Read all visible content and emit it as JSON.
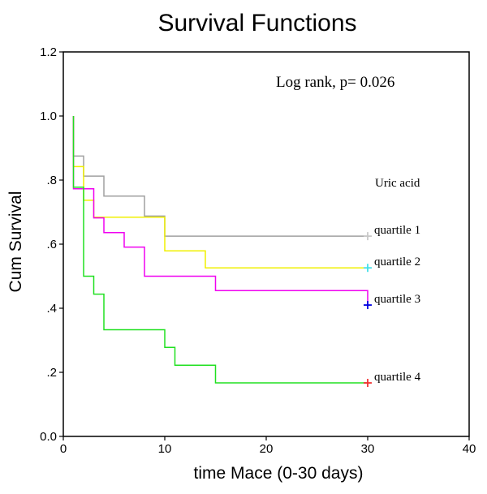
{
  "chart_data": {
    "type": "line",
    "title": "Survival Functions",
    "xlabel": "time Mace (0-30 days)",
    "ylabel": "Cum Survival",
    "xlim": [
      0,
      40
    ],
    "ylim": [
      0.0,
      1.2
    ],
    "x_ticks": [
      {
        "value": 0,
        "label": "0"
      },
      {
        "value": 10,
        "label": "10"
      },
      {
        "value": 20,
        "label": "20"
      },
      {
        "value": 30,
        "label": "30"
      },
      {
        "value": 40,
        "label": "40"
      }
    ],
    "y_ticks": [
      {
        "value": 0.0,
        "label": "0.0"
      },
      {
        "value": 0.2,
        "label": ".2"
      },
      {
        "value": 0.4,
        "label": ".4"
      },
      {
        "value": 0.6,
        "label": ".6"
      },
      {
        "value": 0.8,
        "label": ".8"
      },
      {
        "value": 1.0,
        "label": "1.0"
      },
      {
        "value": 1.2,
        "label": "1.2"
      }
    ],
    "grid": false,
    "legend_title": "Uric acid",
    "annotation": "Log rank, p= 0.026",
    "series": [
      {
        "name": "quartile 1",
        "color": "#a0a0a0",
        "censor_color": "#c8c8c8",
        "x": [
          1,
          1,
          2,
          2,
          4,
          4,
          8,
          8,
          10,
          10,
          30
        ],
        "y": [
          1.0,
          0.875,
          0.875,
          0.8125,
          0.8125,
          0.75,
          0.75,
          0.6875,
          0.6875,
          0.625,
          0.625
        ],
        "censor_x": 30,
        "censor_y": 0.625
      },
      {
        "name": "quartile 2",
        "color": "#f0f000",
        "censor_color": "#40e0e8",
        "x": [
          1,
          1,
          2,
          2,
          3,
          3,
          10,
          10,
          14,
          14,
          30
        ],
        "y": [
          1.0,
          0.842,
          0.842,
          0.737,
          0.737,
          0.684,
          0.684,
          0.579,
          0.579,
          0.526,
          0.526
        ],
        "censor_x": 30,
        "censor_y": 0.526
      },
      {
        "name": "quartile 3",
        "color": "#f000f0",
        "censor_color": "#0000e0",
        "x": [
          1,
          1,
          3,
          3,
          4,
          4,
          6,
          6,
          8,
          8,
          15,
          15,
          30,
          30
        ],
        "y": [
          1.0,
          0.773,
          0.773,
          0.682,
          0.682,
          0.636,
          0.636,
          0.591,
          0.591,
          0.5,
          0.5,
          0.455,
          0.455,
          0.41
        ],
        "censor_x": 30,
        "censor_y": 0.41
      },
      {
        "name": "quartile 4",
        "color": "#20e020",
        "censor_color": "#f03030",
        "x": [
          1,
          1,
          2,
          2,
          3,
          3,
          4,
          4,
          10,
          10,
          11,
          11,
          15,
          15,
          30
        ],
        "y": [
          1.0,
          0.778,
          0.778,
          0.5,
          0.5,
          0.444,
          0.444,
          0.333,
          0.333,
          0.278,
          0.278,
          0.222,
          0.222,
          0.167,
          0.167
        ],
        "censor_x": 30,
        "censor_y": 0.167
      }
    ]
  }
}
